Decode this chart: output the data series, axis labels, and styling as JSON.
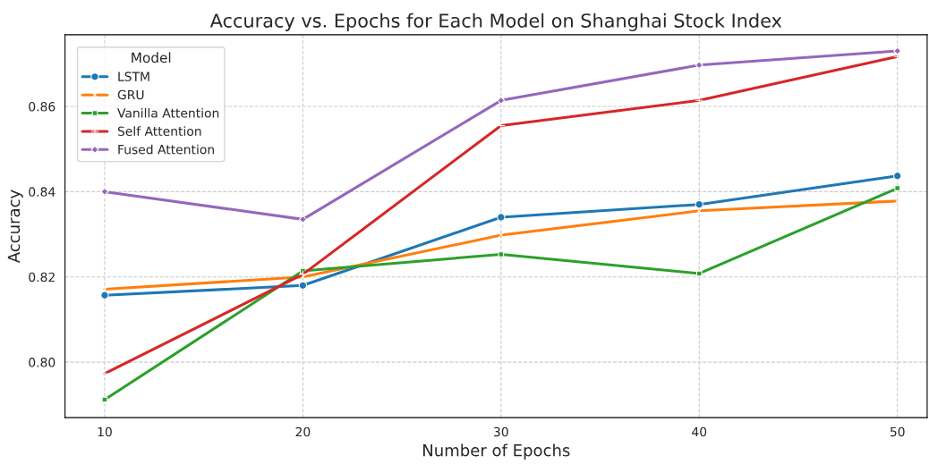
{
  "chart_data": {
    "type": "line",
    "title": "Accuracy vs. Epochs for Each Model on Shanghai Stock Index",
    "xlabel": "Number of Epochs",
    "ylabel": "Accuracy",
    "legend_title": "Model",
    "legend": "top left",
    "grid": true,
    "x": [
      10,
      20,
      30,
      40,
      50
    ],
    "xlim": [
      8.0,
      51.5
    ],
    "xticks": [
      10,
      20,
      30,
      40,
      50
    ],
    "ylim": [
      0.787,
      0.8768
    ],
    "yticks": [
      {
        "value": 0.8,
        "label": "0.80"
      },
      {
        "value": 0.82,
        "label": "0.82"
      },
      {
        "value": 0.84,
        "label": "0.84"
      },
      {
        "value": 0.86,
        "label": "0.86"
      }
    ],
    "series": [
      {
        "name": "LSTM",
        "color": "#1f77b4",
        "marker": "circle",
        "values": [
          0.8157,
          0.818,
          0.834,
          0.837,
          0.8437
        ]
      },
      {
        "name": "GRU",
        "color": "#ff7f0e",
        "marker": "cross",
        "values": [
          0.8171,
          0.82,
          0.8298,
          0.8355,
          0.8378
        ]
      },
      {
        "name": "Vanilla Attention",
        "color": "#2ca02c",
        "marker": "square",
        "values": [
          0.7912,
          0.8214,
          0.8253,
          0.8208,
          0.8408
        ]
      },
      {
        "name": "Self Attention",
        "color": "#d62728",
        "marker": "plus",
        "values": [
          0.7973,
          0.8206,
          0.8555,
          0.8614,
          0.8717
        ]
      },
      {
        "name": "Fused Attention",
        "color": "#9467bd",
        "marker": "diamond",
        "values": [
          0.84,
          0.8335,
          0.8614,
          0.8697,
          0.873
        ]
      }
    ]
  }
}
